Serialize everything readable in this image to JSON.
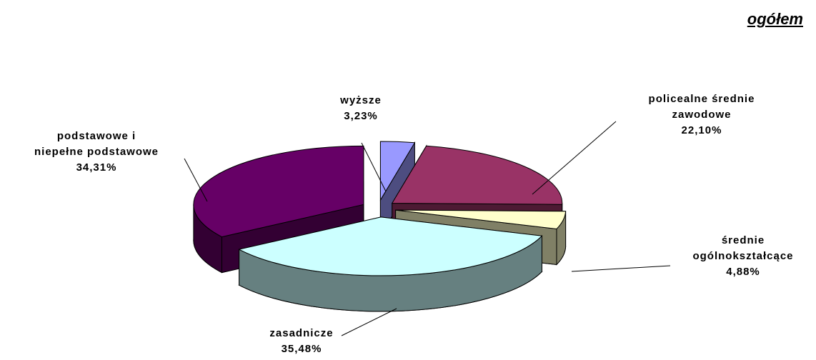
{
  "chart_data": {
    "type": "pie3d",
    "title": "ogółem",
    "categories": [
      "wyższe",
      "policealne średnie\nzawodowe",
      "średnie\nogólnokształcące",
      "zasadnicze",
      "podstawowe i\nniepełne podstawowe"
    ],
    "values": [
      3.23,
      22.1,
      4.88,
      35.48,
      34.31
    ],
    "value_labels": [
      "3,23%",
      "22,10%",
      "4,88%",
      "35,48%",
      "34,31%"
    ],
    "colors": [
      "#9999ff",
      "#993366",
      "#ffffcc",
      "#ccffff",
      "#660066"
    ],
    "side_colors": [
      "#4d4d80",
      "#4d1a33",
      "#808066",
      "#668080",
      "#330033"
    ],
    "exploded": true
  }
}
